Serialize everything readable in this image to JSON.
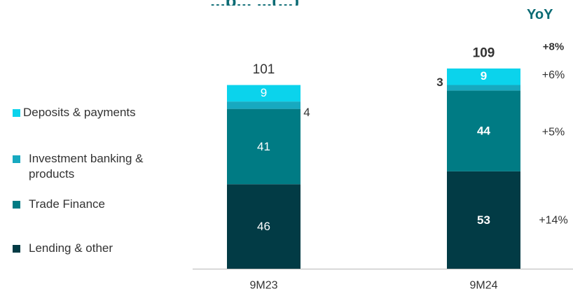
{
  "chart_data": {
    "type": "bar",
    "stacked": true,
    "title": "",
    "title_partial": "...p... ...(...)",
    "yoy_header": "YoY",
    "categories": [
      "9M23",
      "9M24"
    ],
    "series": [
      {
        "name": "Lending & other",
        "color": "#023b45",
        "values": [
          46,
          53
        ]
      },
      {
        "name": "Trade Finance",
        "color": "#007b84",
        "values": [
          41,
          44
        ]
      },
      {
        "name": "Investment banking & products",
        "color": "#17a9c0",
        "values": [
          4,
          3
        ]
      },
      {
        "name": "Deposits & payments",
        "color": "#0bd3ec",
        "values": [
          9,
          9
        ]
      }
    ],
    "totals": [
      101,
      109
    ],
    "yoy": {
      "total": "+8%",
      "Deposits & payments": "+6%",
      "Trade Finance": "+5%",
      "Lending & other": "+14%"
    },
    "legend_position": "left",
    "grid": false
  }
}
